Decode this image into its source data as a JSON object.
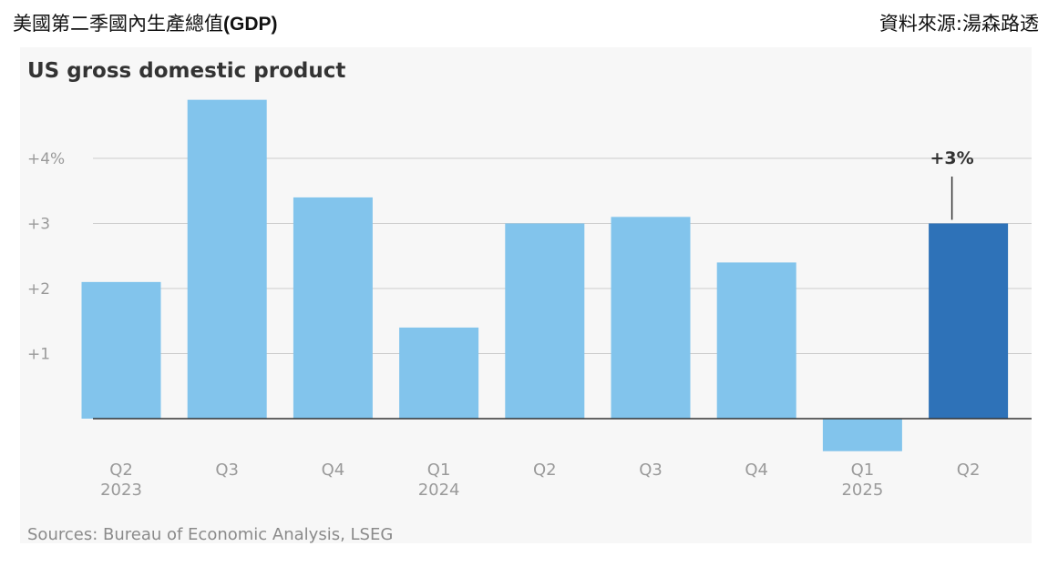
{
  "header": {
    "title_zh": "美國第二季國內生產總值",
    "title_abbr": "(GDP)",
    "source_zh": "資料來源:湯森路透"
  },
  "colors": {
    "bar": "#82c4ec",
    "bar_highlight": "#2e72b8",
    "axis": "#333333",
    "grid": "#cccccc",
    "text_muted": "#9a9a9a",
    "text_dark": "#333333",
    "panel": "#f7f7f7"
  },
  "chart_data": {
    "type": "bar",
    "title": "US gross domestic product",
    "source": "Sources: Bureau of Economic Analysis, LSEG",
    "categories": [
      "Q2\n2023",
      "Q3",
      "Q4",
      "Q1\n2024",
      "Q2",
      "Q3",
      "Q4",
      "Q1\n2025",
      "Q2"
    ],
    "values": [
      2.1,
      4.9,
      3.4,
      1.4,
      3.0,
      3.1,
      2.4,
      -0.5,
      3.0
    ],
    "highlight_index": 8,
    "annotation": {
      "index": 8,
      "text": "+3%"
    },
    "y_ticks": [
      {
        "value": 1,
        "label": "+1"
      },
      {
        "value": 2,
        "label": "+2"
      },
      {
        "value": 3,
        "label": "+3"
      },
      {
        "value": 4,
        "label": "+4%"
      }
    ],
    "ylim": [
      -0.6,
      5.1
    ],
    "xlabel": "",
    "ylabel": "",
    "grid": true
  }
}
